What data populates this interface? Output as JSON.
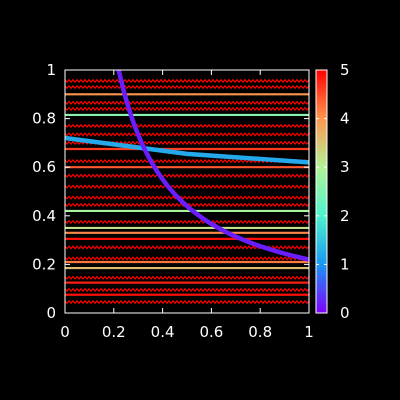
{
  "chart_data": {
    "type": "line",
    "title": "",
    "xlabel": "",
    "ylabel": "",
    "xlim": [
      0,
      1
    ],
    "ylim": [
      0,
      1
    ],
    "x_ticks": [
      "0",
      "0.2",
      "0.4",
      "0.6",
      "0.8",
      "1"
    ],
    "y_ticks": [
      "0",
      "0.2",
      "0.4",
      "0.6",
      "0.8",
      "1"
    ],
    "grid": false,
    "legend": "none",
    "colorbar": {
      "range": [
        0,
        5
      ],
      "ticks": [
        "0",
        "1",
        "2",
        "3",
        "4",
        "5"
      ],
      "colormap": "rainbow",
      "position": "right"
    },
    "hyperbola": {
      "formula": "y = 0.22 / x",
      "x_start": 0.22,
      "x_end": 1.0,
      "color_value": 0.2
    },
    "diagonal": {
      "points": [
        [
          0,
          0.72
        ],
        [
          0.5,
          0.655
        ],
        [
          1,
          0.62
        ]
      ],
      "color_value": 1.2
    },
    "horizontal_bands": [
      {
        "y": 0.045,
        "color_value": 5,
        "zigzag": true
      },
      {
        "y": 0.075,
        "color_value": 4.9,
        "zigzag": false
      },
      {
        "y": 0.095,
        "color_value": 5,
        "zigzag": true
      },
      {
        "y": 0.125,
        "color_value": 4.8,
        "zigzag": false
      },
      {
        "y": 0.145,
        "color_value": 5,
        "zigzag": true
      },
      {
        "y": 0.185,
        "color_value": 3.6,
        "zigzag": false
      },
      {
        "y": 0.21,
        "color_value": 4.2,
        "zigzag": false
      },
      {
        "y": 0.225,
        "color_value": 5,
        "zigzag": true
      },
      {
        "y": 0.27,
        "color_value": 5,
        "zigzag": true
      },
      {
        "y": 0.305,
        "color_value": 4.9,
        "zigzag": false
      },
      {
        "y": 0.33,
        "color_value": 4.1,
        "zigzag": false
      },
      {
        "y": 0.35,
        "color_value": 3.2,
        "zigzag": false
      },
      {
        "y": 0.375,
        "color_value": 5,
        "zigzag": true
      },
      {
        "y": 0.42,
        "color_value": 2.9,
        "zigzag": false
      },
      {
        "y": 0.445,
        "color_value": 5,
        "zigzag": true
      },
      {
        "y": 0.475,
        "color_value": 5,
        "zigzag": true
      },
      {
        "y": 0.52,
        "color_value": 5,
        "zigzag": true
      },
      {
        "y": 0.565,
        "color_value": 5,
        "zigzag": true
      },
      {
        "y": 0.6,
        "color_value": 4.4,
        "zigzag": false
      },
      {
        "y": 0.625,
        "color_value": 5,
        "zigzag": true
      },
      {
        "y": 0.675,
        "color_value": 4.6,
        "zigzag": false
      },
      {
        "y": 0.7,
        "color_value": 5,
        "zigzag": true
      },
      {
        "y": 0.735,
        "color_value": 5,
        "zigzag": true
      },
      {
        "y": 0.77,
        "color_value": 5,
        "zigzag": true
      },
      {
        "y": 0.815,
        "color_value": 2.6,
        "zigzag": false
      },
      {
        "y": 0.84,
        "color_value": 5,
        "zigzag": true
      },
      {
        "y": 0.865,
        "color_value": 5,
        "zigzag": true
      },
      {
        "y": 0.9,
        "color_value": 4.0,
        "zigzag": false
      },
      {
        "y": 0.93,
        "color_value": 5,
        "zigzag": true
      },
      {
        "y": 0.955,
        "color_value": 5,
        "zigzag": true
      }
    ]
  }
}
